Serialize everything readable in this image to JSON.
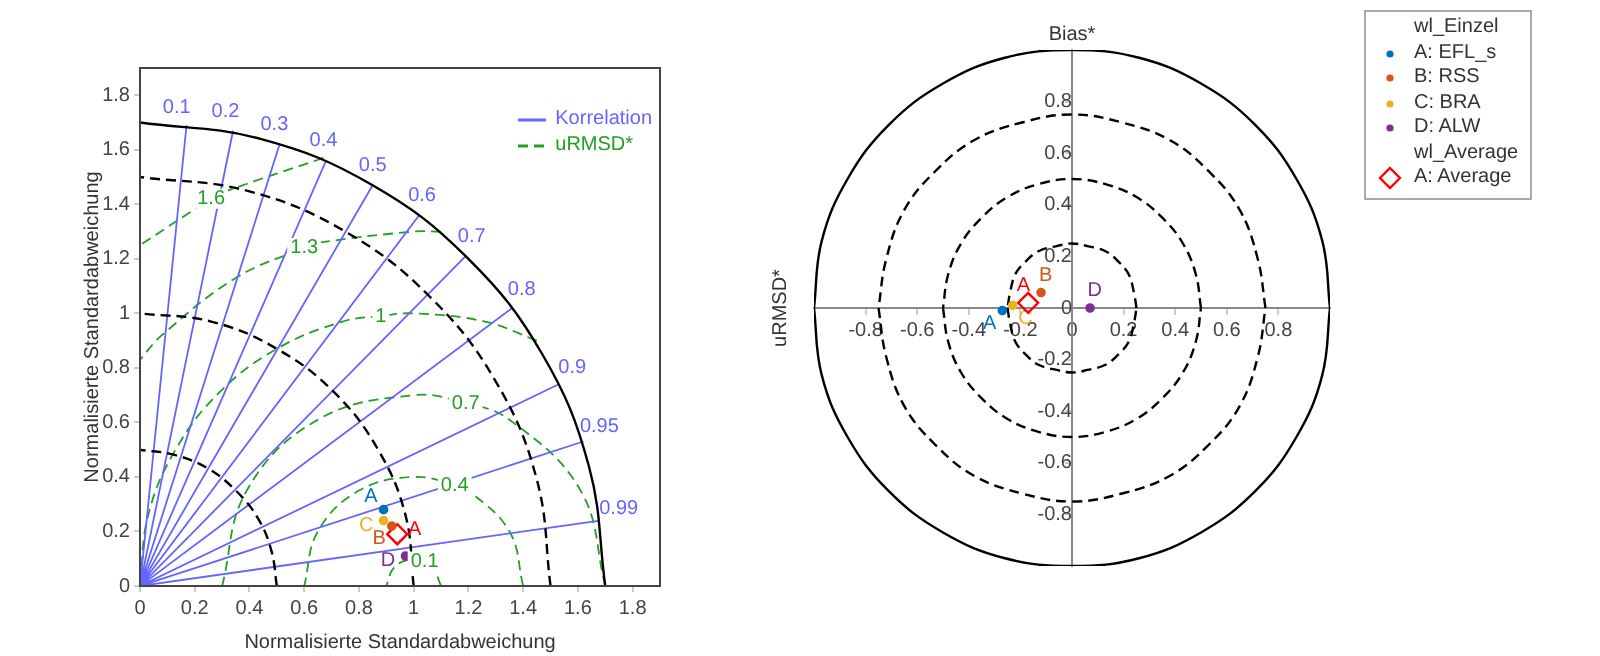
{
  "chart_data": [
    {
      "type": "scatter",
      "xlabel": "Normalisierte Standardabweichung",
      "ylabel": "Normalisierte Standardabweichung",
      "xlim": [
        0,
        1.9
      ],
      "ylim": [
        0,
        1.9
      ],
      "xticks": [
        0,
        0.2,
        0.4,
        0.6,
        0.8,
        1,
        1.2,
        1.4,
        1.6,
        1.8
      ],
      "yticks": [
        0,
        0.2,
        0.4,
        0.6,
        0.8,
        1,
        1.2,
        1.4,
        1.6,
        1.8
      ],
      "grid": false,
      "legend": "top right",
      "annotations": [
        "0.1",
        "0.2",
        "0.3",
        "0.4",
        "0.5",
        "0.6",
        "0.7",
        "0.8",
        "0.9",
        "0.95",
        "0.99",
        {
          "text": "0.1",
          "x": 1.04,
          "y": 0.09
        },
        {
          "text": "0.4",
          "x": 1.15,
          "y": 0.37
        },
        {
          "text": "0.7",
          "x": 1.19,
          "y": 0.67
        },
        {
          "text": "1",
          "x": 0.88,
          "y": 0.99
        },
        {
          "text": "1.3",
          "x": 0.6,
          "y": 1.24
        },
        {
          "text": "1.6",
          "x": 0.26,
          "y": 1.42
        }
      ],
      "series": [
        {
          "type": "line",
          "color": "#000000",
          "line_style": "solid",
          "marker": "none",
          "x": [
            1.7,
            1.64,
            1.47,
            1.2,
            0.85,
            0.44,
            0
          ],
          "values": [
            0,
            0.44,
            0.85,
            1.2,
            1.47,
            1.64,
            1.7
          ]
        },
        {
          "type": "line",
          "color": "#000000",
          "line_style": "dashed",
          "marker": "none",
          "x": [
            0.5,
            0.48,
            0.43,
            0.35,
            0.25,
            0.13,
            0,
            null,
            1,
            0.97,
            0.87,
            0.71,
            0.5,
            0.26,
            0,
            null,
            1.5,
            1.45,
            1.3,
            1.06,
            0.75,
            0.39,
            0
          ],
          "values": [
            0,
            0.13,
            0.25,
            0.35,
            0.43,
            0.48,
            0.5,
            null,
            0,
            0.26,
            0.5,
            0.71,
            0.87,
            0.97,
            1,
            null,
            0,
            0.39,
            0.75,
            1.06,
            1.3,
            1.45,
            1.5
          ]
        },
        {
          "type": "line",
          "name": "Korrelation",
          "color": "#6464ff",
          "line_style": "solid",
          "marker": "none",
          "x": [
            0,
            0.17,
            null,
            0,
            0.34,
            null,
            0,
            0.51,
            null,
            0,
            0.68,
            null,
            0,
            0.85,
            null,
            0,
            1.02,
            null,
            0,
            1.19,
            null,
            0,
            1.36,
            null,
            0,
            1.53,
            null,
            0,
            1.62,
            null,
            0,
            1.68
          ],
          "values": [
            0,
            1.69,
            null,
            0,
            1.67,
            null,
            0,
            1.62,
            null,
            0,
            1.56,
            null,
            0,
            1.47,
            null,
            0,
            1.36,
            null,
            0,
            1.21,
            null,
            0,
            1.02,
            null,
            0,
            0.74,
            null,
            0,
            0.53,
            null,
            0,
            0.24
          ]
        },
        {
          "type": "line",
          "name": "uRMSD*",
          "color": "#22a022",
          "line_style": "dashed",
          "marker": "none",
          "x": [
            1.1,
            1.07,
            1.04,
            1,
            0.93,
            0.9,
            null,
            1.4,
            1.35,
            1.2,
            1.15,
            1,
            0.8,
            0.65,
            0.6,
            null,
            1.7,
            1.61,
            1.35,
            1.19,
            1,
            0.65,
            0.39,
            0.3,
            null,
            1.45,
            1.26,
            1,
            0.88,
            0.74,
            0.5,
            0.29,
            0.13,
            0.03,
            0,
            null,
            1.1,
            1,
            0.66,
            0.6,
            0.35,
            0.08,
            0,
            null,
            0.67,
            0.32,
            0.26,
            0
          ],
          "values": [
            0,
            0.07,
            0.09,
            0.1,
            0.07,
            0,
            null,
            0,
            0.2,
            0.35,
            0.37,
            0.4,
            0.35,
            0.2,
            0,
            null,
            0,
            0.35,
            0.61,
            0.67,
            0.7,
            0.61,
            0.35,
            0,
            null,
            0.9,
            0.97,
            1,
            0.99,
            0.97,
            0.87,
            0.71,
            0.5,
            0.26,
            0,
            null,
            1.3,
            1.3,
            1.26,
            1.24,
            1.13,
            0.92,
            0.83,
            null,
            1.57,
            1.45,
            1.42,
            1.25
          ]
        },
        {
          "type": "scatter",
          "name": "A",
          "color": "#0072bd",
          "marker": "circle",
          "x": [
            0.89
          ],
          "values": [
            0.28
          ]
        },
        {
          "type": "scatter",
          "name": "B",
          "color": "#d95319",
          "marker": "circle",
          "x": [
            0.92
          ],
          "values": [
            0.22
          ]
        },
        {
          "type": "scatter",
          "name": "C",
          "color": "#edb120",
          "marker": "circle",
          "x": [
            0.89
          ],
          "values": [
            0.24
          ]
        },
        {
          "type": "scatter",
          "name": "D",
          "color": "#7e2f8e",
          "marker": "circle",
          "x": [
            0.97
          ],
          "values": [
            0.11
          ]
        },
        {
          "type": "scatter",
          "name": "A",
          "color": "#ff0000",
          "marker": "diamond",
          "x": [
            0.94
          ],
          "values": [
            0.19
          ]
        }
      ]
    },
    {
      "type": "scatter",
      "title": "Bias*",
      "ylabel": "uRMSD*",
      "xlim": [
        -1,
        1
      ],
      "ylim": [
        -1,
        1
      ],
      "xticks": [
        -0.8,
        -0.6,
        -0.4,
        -0.2,
        0,
        0.2,
        0.4,
        0.6,
        0.8
      ],
      "yticks": [
        -0.8,
        -0.6,
        -0.4,
        -0.2,
        0,
        0.2,
        0.4,
        0.6,
        0.8
      ],
      "grid": false,
      "legend": "right",
      "legend_title": "wl_Einzel",
      "annotations": [
        "wl_Average",
        {
          "text": "A",
          "x": -0.27,
          "y": -0.01
        },
        {
          "text": "B",
          "x": -0.12,
          "y": 0.06
        },
        {
          "text": "C",
          "x": -0.23,
          "y": 0.01
        },
        {
          "text": "D",
          "x": 0.07,
          "y": 0
        },
        {
          "text": "A",
          "x": -0.17,
          "y": 0.02
        }
      ],
      "series": [
        {
          "type": "line",
          "color": "#000000",
          "line_style": "solid",
          "marker": "none",
          "x": [
            1,
            0.97,
            0.87,
            0.71,
            0.5,
            0.26,
            0,
            -0.26,
            -0.5,
            -0.71,
            -0.87,
            -0.97,
            -1,
            null,
            -1,
            -0.97,
            -0.87,
            -0.71,
            -0.5,
            -0.26,
            0,
            0.26,
            0.5,
            0.71,
            0.87,
            0.97,
            1
          ],
          "values": [
            0,
            0.26,
            0.5,
            0.71,
            0.87,
            0.97,
            1,
            0.97,
            0.87,
            0.71,
            0.5,
            0.26,
            0,
            null,
            0,
            -0.26,
            -0.5,
            -0.71,
            -0.87,
            -0.97,
            -1,
            -0.97,
            -0.87,
            -0.71,
            -0.5,
            -0.26,
            0
          ]
        },
        {
          "type": "line",
          "color": "#000000",
          "line_style": "dashed",
          "marker": "none",
          "x": [
            0.75,
            0.72,
            0.65,
            0.53,
            0.38,
            0.19,
            0,
            -0.19,
            -0.38,
            -0.53,
            -0.65,
            -0.72,
            -0.75,
            null,
            -0.75,
            -0.72,
            -0.65,
            -0.53,
            -0.38,
            -0.19,
            0,
            0.19,
            0.38,
            0.53,
            0.65,
            0.72,
            0.75,
            null,
            0.5,
            0.48,
            0.43,
            0.35,
            0.25,
            0.13,
            0,
            -0.13,
            -0.25,
            -0.35,
            -0.43,
            -0.48,
            -0.5,
            null,
            -0.5,
            -0.48,
            -0.43,
            -0.35,
            -0.25,
            -0.13,
            0,
            0.13,
            0.25,
            0.35,
            0.43,
            0.48,
            0.5,
            null,
            0.25,
            0.24,
            0.22,
            0.18,
            0.13,
            0.06,
            0,
            -0.06,
            -0.13,
            -0.18,
            -0.22,
            -0.24,
            -0.25,
            null,
            -0.25,
            -0.24,
            -0.22,
            -0.18,
            -0.13,
            -0.06,
            0,
            0.06,
            0.13,
            0.18,
            0.22,
            0.24,
            0.25
          ],
          "values": [
            0,
            0.19,
            0.38,
            0.53,
            0.65,
            0.72,
            0.75,
            0.72,
            0.65,
            0.53,
            0.38,
            0.19,
            0,
            null,
            0,
            -0.19,
            -0.38,
            -0.53,
            -0.65,
            -0.72,
            -0.75,
            -0.72,
            -0.65,
            -0.53,
            -0.38,
            -0.19,
            0,
            null,
            0,
            0.13,
            0.25,
            0.35,
            0.43,
            0.48,
            0.5,
            0.48,
            0.43,
            0.35,
            0.25,
            0.13,
            0,
            null,
            0,
            -0.13,
            -0.25,
            -0.35,
            -0.43,
            -0.48,
            -0.5,
            -0.48,
            -0.43,
            -0.35,
            -0.25,
            -0.13,
            0,
            null,
            0,
            0.06,
            0.13,
            0.18,
            0.22,
            0.24,
            0.25,
            0.24,
            0.22,
            0.18,
            0.13,
            0.06,
            0,
            null,
            0,
            -0.06,
            -0.13,
            -0.18,
            -0.22,
            -0.24,
            -0.25,
            -0.24,
            -0.22,
            -0.18,
            -0.13,
            -0.06,
            0
          ]
        },
        {
          "type": "scatter",
          "name": "A: EFL_s",
          "color": "#0072bd",
          "marker": "circle",
          "x": [
            -0.27
          ],
          "values": [
            -0.01
          ]
        },
        {
          "type": "scatter",
          "name": "B: RSS",
          "color": "#d95319",
          "marker": "circle",
          "x": [
            -0.12
          ],
          "values": [
            0.06
          ]
        },
        {
          "type": "scatter",
          "name": "C: BRA",
          "color": "#edb120",
          "marker": "circle",
          "x": [
            -0.23
          ],
          "values": [
            0.01
          ]
        },
        {
          "type": "scatter",
          "name": "D: ALW",
          "color": "#7e2f8e",
          "marker": "circle",
          "x": [
            0.07
          ],
          "values": [
            0
          ]
        },
        {
          "type": "scatter",
          "name": "A: Average",
          "color": "#ff0000",
          "marker": "diamond",
          "x": [
            -0.17
          ],
          "values": [
            0.02
          ]
        }
      ]
    }
  ]
}
